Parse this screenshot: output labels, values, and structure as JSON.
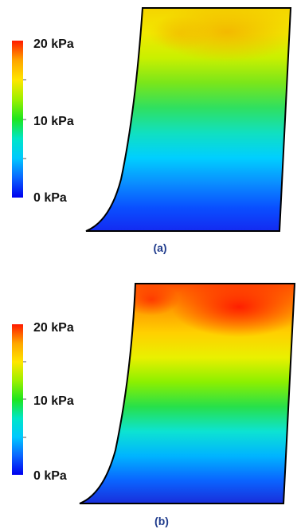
{
  "colorbar": {
    "max_label": "20 kPa",
    "mid_label": "10 kPa",
    "min_label": "0 kPa",
    "colors": [
      "#ff1a00",
      "#ffa500",
      "#ffe600",
      "#9cf000",
      "#1ee61e",
      "#00e6c8",
      "#00c8ff",
      "#0a64ff",
      "#0000ee"
    ]
  },
  "panels": [
    {
      "caption": "(a)",
      "pressure_bands": [
        "#f5d400",
        "#f2e800",
        "#c9f000",
        "#7ae61a",
        "#2fe060",
        "#11e0c0",
        "#00cfff",
        "#0a8fff",
        "#0a4fff",
        "#1428f0"
      ],
      "hotspot_color": "#f3b400"
    },
    {
      "caption": "(b)",
      "pressure_bands": [
        "#ff4a00",
        "#ff9a00",
        "#ffd000",
        "#e9f000",
        "#8cf000",
        "#27e04a",
        "#0de3d2",
        "#00b4ff",
        "#0a64ff",
        "#1a2ad8"
      ],
      "hotspot_color": "#ff1800"
    }
  ]
}
